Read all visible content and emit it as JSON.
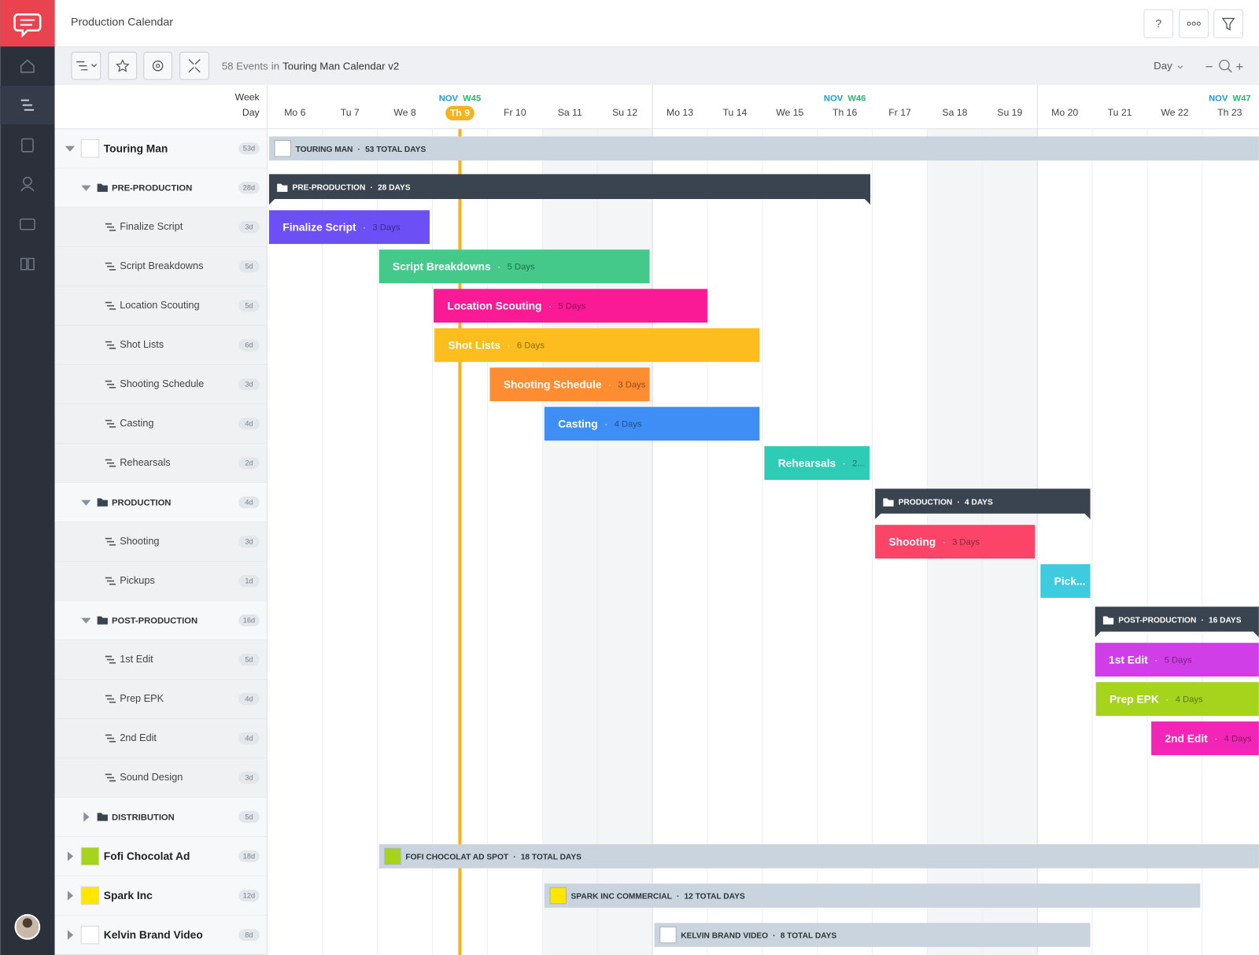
{
  "header": {
    "title": "Production Calendar",
    "help": "?"
  },
  "toolbar": {
    "events": "58 Events",
    "in": "in",
    "calendar": "Touring Man Calendar v2",
    "view": "Day"
  },
  "timeline": {
    "week_label": "Week",
    "day_label": "Day",
    "days": [
      "Mo 6",
      "Tu 7",
      "We 8",
      "Th 9",
      "Fr 10",
      "Sa 11",
      "Su 12",
      "Mo 13",
      "Tu 14",
      "We 15",
      "Th 16",
      "Fr 17",
      "Sa 18",
      "Su 19",
      "Mo 20",
      "Tu 21",
      "We 22",
      "Th 23"
    ],
    "weeks": [
      {
        "month": "NOV",
        "week": "W45"
      },
      {
        "month": "NOV",
        "week": "W46"
      },
      {
        "month": "NOV",
        "week": "W47"
      }
    ]
  },
  "separator": "·",
  "rows": [
    {
      "label": "Touring Man",
      "badge": "53d",
      "bar": {
        "label": "TOURING MAN",
        "detail": "53 TOTAL DAYS"
      }
    },
    {
      "label": "PRE-PRODUCTION",
      "badge": "28d",
      "bar": {
        "label": "PRE-PRODUCTION",
        "detail": "28 DAYS"
      }
    },
    {
      "label": "Finalize Script",
      "badge": "3d",
      "bar": {
        "label": "Finalize Script",
        "detail": "3 Days"
      }
    },
    {
      "label": "Script Breakdowns",
      "badge": "5d",
      "bar": {
        "label": "Script Breakdowns",
        "detail": "5 Days"
      }
    },
    {
      "label": "Location Scouting",
      "badge": "5d",
      "bar": {
        "label": "Location Scouting",
        "detail": "5 Days"
      }
    },
    {
      "label": "Shot Lists",
      "badge": "6d",
      "bar": {
        "label": "Shot Lists",
        "detail": "6 Days"
      }
    },
    {
      "label": "Shooting Schedule",
      "badge": "3d",
      "bar": {
        "label": "Shooting Schedule",
        "detail": "3 Days"
      }
    },
    {
      "label": "Casting",
      "badge": "4d",
      "bar": {
        "label": "Casting",
        "detail": "4 Days"
      }
    },
    {
      "label": "Rehearsals",
      "badge": "2d",
      "bar": {
        "label": "Rehearsals",
        "detail": "2..."
      }
    },
    {
      "label": "PRODUCTION",
      "badge": "4d",
      "bar": {
        "label": "PRODUCTION",
        "detail": "4 DAYS"
      }
    },
    {
      "label": "Shooting",
      "badge": "3d",
      "bar": {
        "label": "Shooting",
        "detail": "3 Days"
      }
    },
    {
      "label": "Pickups",
      "badge": "1d",
      "bar": {
        "label": "Pick..."
      }
    },
    {
      "label": "POST-PRODUCTION",
      "badge": "16d",
      "bar": {
        "label": "POST-PRODUCTION",
        "detail": "16 DAYS"
      }
    },
    {
      "label": "1st Edit",
      "badge": "5d",
      "bar": {
        "label": "1st Edit",
        "detail": "5 Days"
      }
    },
    {
      "label": "Prep EPK",
      "badge": "4d",
      "bar": {
        "label": "Prep EPK",
        "detail": "4 Days"
      }
    },
    {
      "label": "2nd Edit",
      "badge": "4d",
      "bar": {
        "label": "2nd Edit",
        "detail": "4 Days"
      }
    },
    {
      "label": "Sound Design",
      "badge": "3d"
    },
    {
      "label": "DISTRIBUTION",
      "badge": "5d"
    },
    {
      "label": "Fofi Chocolat Ad",
      "badge": "18d",
      "bar": {
        "label": "FOFI CHOCOLAT AD SPOT",
        "detail": "18 TOTAL DAYS"
      }
    },
    {
      "label": "Spark Inc",
      "badge": "12d",
      "bar": {
        "label": "SPARK INC COMMERCIAL",
        "detail": "12 TOTAL DAYS"
      }
    },
    {
      "label": "Kelvin Brand Video",
      "badge": "8d",
      "bar": {
        "label": "KELVIN BRAND VIDEO",
        "detail": "8 TOTAL DAYS"
      }
    }
  ]
}
